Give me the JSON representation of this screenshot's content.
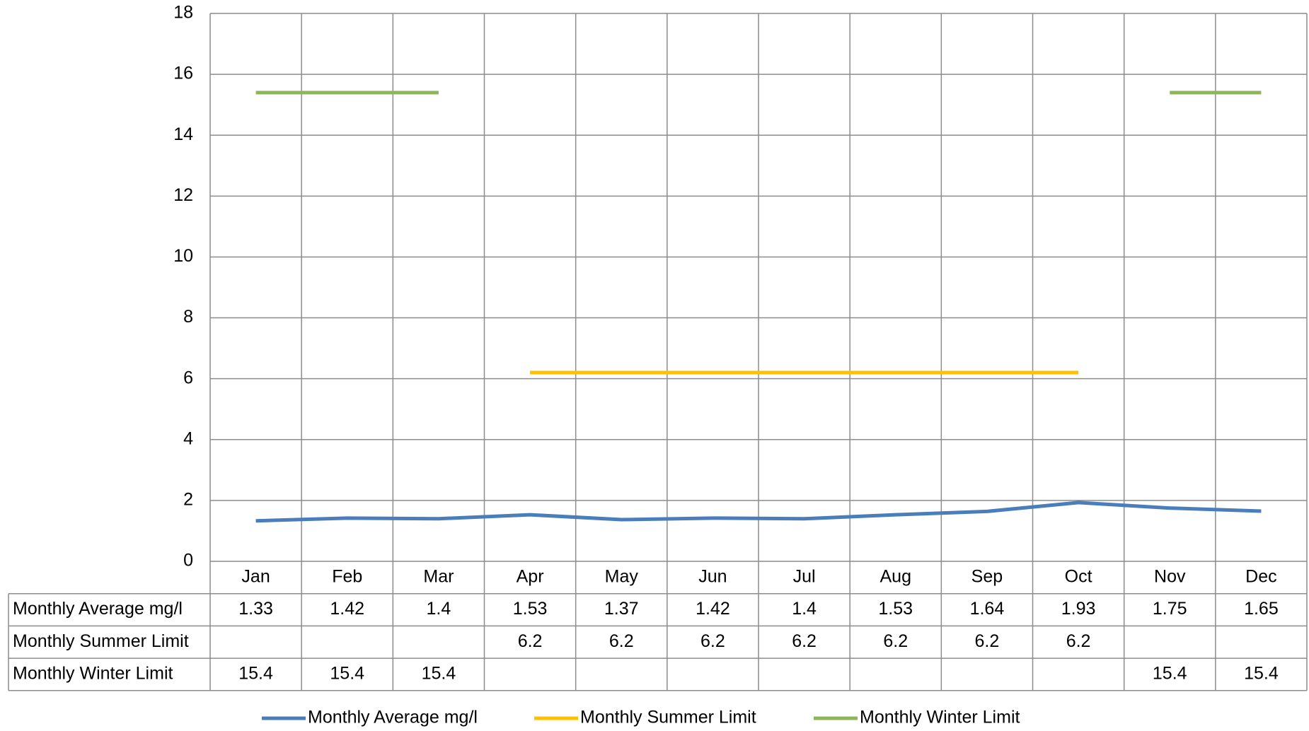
{
  "chart_data": {
    "type": "line",
    "categories": [
      "Jan",
      "Feb",
      "Mar",
      "Apr",
      "May",
      "Jun",
      "Jul",
      "Aug",
      "Sep",
      "Oct",
      "Nov",
      "Dec"
    ],
    "series": [
      {
        "name": "Monthly Average mg/l",
        "color": "#4a7ebb",
        "values": [
          1.33,
          1.42,
          1.4,
          1.53,
          1.37,
          1.42,
          1.4,
          1.53,
          1.64,
          1.93,
          1.75,
          1.65
        ]
      },
      {
        "name": "Monthly Summer Limit",
        "color": "#ffc000",
        "values": [
          null,
          null,
          null,
          6.2,
          6.2,
          6.2,
          6.2,
          6.2,
          6.2,
          6.2,
          null,
          null
        ]
      },
      {
        "name": "Monthly Winter Limit",
        "color": "#8db55a",
        "values": [
          15.4,
          15.4,
          15.4,
          null,
          null,
          null,
          null,
          null,
          null,
          null,
          15.4,
          15.4
        ]
      }
    ],
    "ylim": [
      0,
      18
    ],
    "yticks": [
      0,
      2,
      4,
      6,
      8,
      10,
      12,
      14,
      16,
      18
    ],
    "grid": true,
    "legend": "bottom"
  }
}
